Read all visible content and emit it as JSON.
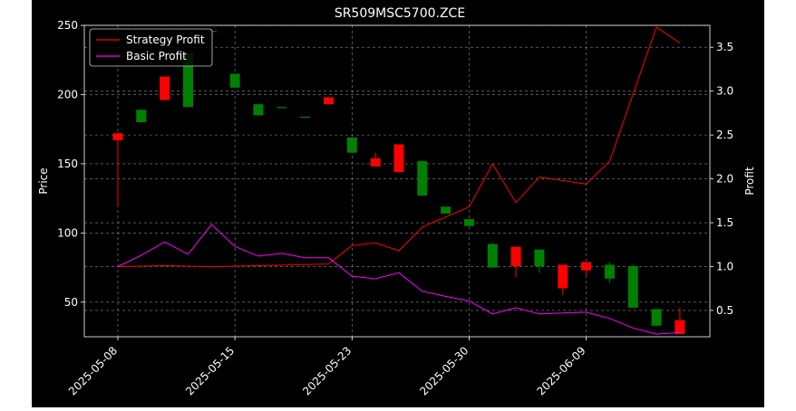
{
  "chart_data": {
    "type": "candlestick+line",
    "title": "SR509MSC5700.ZCE",
    "xlabel": "",
    "ylabel_left": "Price",
    "ylabel_right": "Profit",
    "ylim_left": [
      25,
      250
    ],
    "ylim_right": [
      0.2,
      3.75
    ],
    "yticks_left": [
      50,
      100,
      150,
      200,
      250
    ],
    "yticks_right": [
      0.5,
      1.0,
      1.5,
      2.0,
      2.5,
      3.0,
      3.5
    ],
    "yticks_left_labels": [
      "50",
      "100",
      "150",
      "200",
      "250"
    ],
    "yticks_right_labels": [
      "0.5",
      "1.0",
      "1.5",
      "2.0",
      "2.5",
      "3.0",
      "3.5"
    ],
    "xticks": [
      {
        "index": 0,
        "label": "2025-05-08"
      },
      {
        "index": 5,
        "label": "2025-05-15"
      },
      {
        "index": 10,
        "label": "2025-05-23"
      },
      {
        "index": 15,
        "label": "2025-05-30"
      },
      {
        "index": 20,
        "label": "2025-06-09"
      }
    ],
    "grid": true,
    "legend_position": "top-left",
    "up_color": "#008000",
    "down_color": "#ff0000",
    "candles": [
      {
        "open": 172,
        "high": 172,
        "low": 120,
        "close": 167
      },
      {
        "open": 180,
        "high": 189,
        "low": 180,
        "close": 189
      },
      {
        "open": 213,
        "high": 213,
        "low": 196,
        "close": 196
      },
      {
        "open": 191,
        "high": 230,
        "low": 191,
        "close": 230
      },
      {
        "open": 246,
        "high": 247,
        "low": 246,
        "close": 246
      },
      {
        "open": 205,
        "high": 215,
        "low": 205,
        "close": 215
      },
      {
        "open": 185,
        "high": 193,
        "low": 185,
        "close": 193
      },
      {
        "open": 191,
        "high": 191,
        "low": 191,
        "close": 191
      },
      {
        "open": 184,
        "high": 184,
        "low": 184,
        "close": 184
      },
      {
        "open": 198,
        "high": 198,
        "low": 193,
        "close": 193
      },
      {
        "open": 158,
        "high": 169,
        "low": 158,
        "close": 169
      },
      {
        "open": 154,
        "high": 158,
        "low": 148,
        "close": 148
      },
      {
        "open": 164,
        "high": 164,
        "low": 144,
        "close": 144
      },
      {
        "open": 127,
        "high": 152,
        "low": 127,
        "close": 152
      },
      {
        "open": 114,
        "high": 119,
        "low": 114,
        "close": 119
      },
      {
        "open": 105,
        "high": 110,
        "low": 105,
        "close": 110
      },
      {
        "open": 75,
        "high": 93,
        "low": 75,
        "close": 92
      },
      {
        "open": 90,
        "high": 90,
        "low": 68,
        "close": 76
      },
      {
        "open": 76,
        "high": 88,
        "low": 71,
        "close": 88
      },
      {
        "open": 77,
        "high": 77,
        "low": 55,
        "close": 60
      },
      {
        "open": 79,
        "high": 79,
        "low": 69,
        "close": 73
      },
      {
        "open": 67,
        "high": 79,
        "low": 64,
        "close": 77
      },
      {
        "open": 46,
        "high": 77,
        "low": 46,
        "close": 76
      },
      {
        "open": 33,
        "high": 45,
        "low": 33,
        "close": 45
      },
      {
        "open": 37,
        "high": 46,
        "low": 27,
        "close": 27
      }
    ],
    "series": [
      {
        "name": "Strategy Profit",
        "color": "#ff0000",
        "axis": "right",
        "points": [
          [
            0,
            1.0
          ],
          [
            2,
            1.01
          ],
          [
            4,
            1.0
          ],
          [
            6,
            1.01
          ],
          [
            9,
            1.03
          ],
          [
            10,
            1.24
          ],
          [
            11,
            1.27
          ],
          [
            12,
            1.18
          ],
          [
            13,
            1.45
          ],
          [
            15,
            1.68
          ],
          [
            16,
            2.17
          ],
          [
            17,
            1.73
          ],
          [
            18,
            2.02
          ],
          [
            20,
            1.94
          ],
          [
            21,
            2.2
          ],
          [
            23,
            3.73
          ],
          [
            24,
            3.55
          ]
        ]
      },
      {
        "name": "Basic Profit",
        "color": "#ff00ff",
        "axis": "right",
        "points": [
          [
            0,
            1.0
          ],
          [
            1,
            1.13
          ],
          [
            2,
            1.28
          ],
          [
            3,
            1.14
          ],
          [
            4,
            1.48
          ],
          [
            5,
            1.23
          ],
          [
            6,
            1.12
          ],
          [
            7,
            1.15
          ],
          [
            8,
            1.1
          ],
          [
            9,
            1.1
          ],
          [
            10,
            0.89
          ],
          [
            11,
            0.86
          ],
          [
            12,
            0.93
          ],
          [
            13,
            0.72
          ],
          [
            14,
            0.66
          ],
          [
            15,
            0.61
          ],
          [
            16,
            0.46
          ],
          [
            17,
            0.53
          ],
          [
            18,
            0.46
          ],
          [
            19,
            0.47
          ],
          [
            20,
            0.48
          ],
          [
            21,
            0.41
          ],
          [
            22,
            0.3
          ],
          [
            23,
            0.23
          ],
          [
            24,
            0.25
          ]
        ]
      }
    ]
  }
}
